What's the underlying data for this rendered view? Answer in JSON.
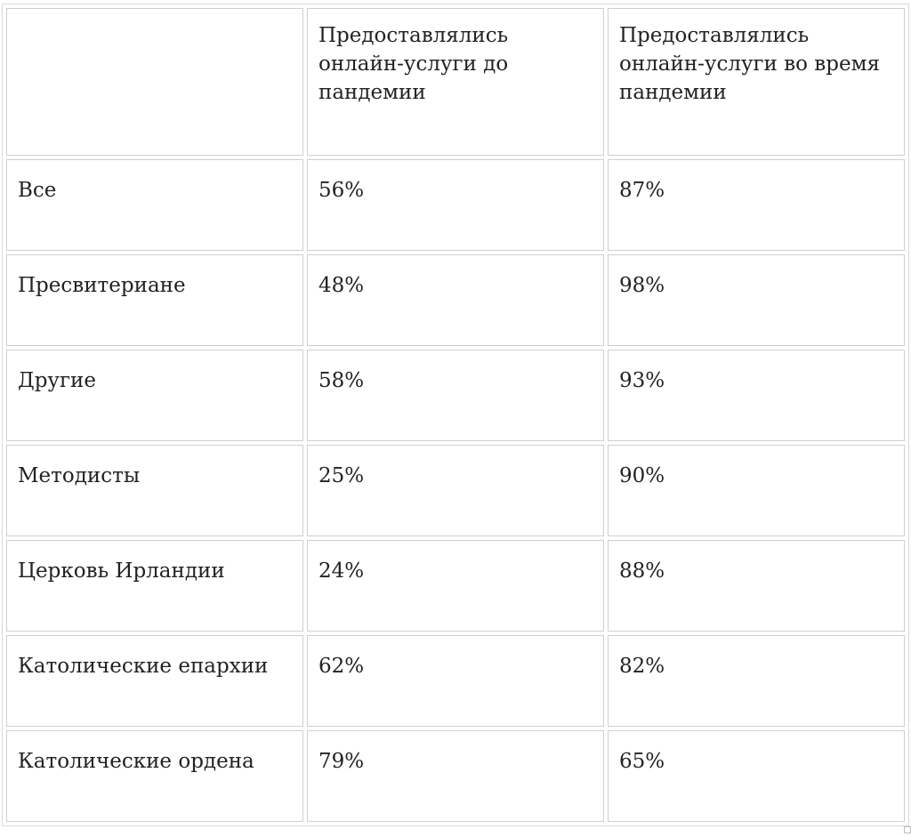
{
  "table": {
    "headers": [
      "",
      "Предоставлялись онлайн-услуги до пандемии",
      "Предоставлялись онлайн-услуги во время пандемии"
    ],
    "rows": [
      {
        "label": "Все",
        "before": "56%",
        "during": "87%"
      },
      {
        "label": "Пресвитериане",
        "before": "48%",
        "during": "98%"
      },
      {
        "label": "Другие",
        "before": "58%",
        "during": "93%"
      },
      {
        "label": "Методисты",
        "before": "25%",
        "during": "90%"
      },
      {
        "label": "Церковь Ирландии",
        "before": "24%",
        "during": "88%"
      },
      {
        "label": "Католические епархии",
        "before": "62%",
        "during": "82%"
      },
      {
        "label": "Католические ордена",
        "before": "79%",
        "during": "65%"
      }
    ]
  }
}
